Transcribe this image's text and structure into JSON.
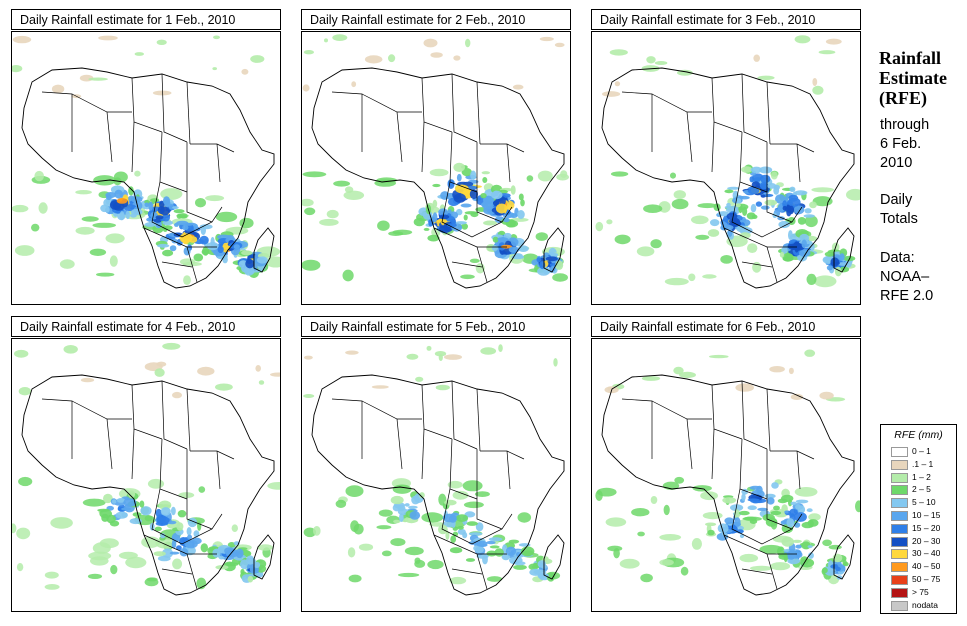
{
  "panels": [
    {
      "title": "Daily Rainfall estimate for  1 Feb., 2010",
      "intensity": "very high",
      "focus": "south"
    },
    {
      "title": "Daily Rainfall estimate for  2 Feb., 2010",
      "intensity": "very high",
      "focus": "central"
    },
    {
      "title": "Daily Rainfall estimate for  3 Feb., 2010",
      "intensity": "high",
      "focus": "central"
    },
    {
      "title": "Daily Rainfall estimate for  4 Feb., 2010",
      "intensity": "moderate",
      "focus": "south"
    },
    {
      "title": "Daily Rainfall estimate for  5 Feb., 2010",
      "intensity": "low",
      "focus": "south"
    },
    {
      "title": "Daily Rainfall estimate for  6 Feb., 2010",
      "intensity": "moderate",
      "focus": "central"
    }
  ],
  "sidebar": {
    "title_lines": [
      "Rainfall",
      "Estimate",
      "(RFE)"
    ],
    "through_lines": [
      "through",
      "6 Feb.",
      "2010"
    ],
    "totals_lines": [
      "Daily",
      "Totals"
    ],
    "data_lines": [
      "Data:",
      "NOAA–",
      "RFE 2.0"
    ]
  },
  "legend": {
    "title": "RFE (mm)",
    "items": [
      {
        "label": "0 – 1",
        "color": "#ffffff"
      },
      {
        "label": ".1 – 1",
        "color": "#e8d6bd"
      },
      {
        "label": "1 – 2",
        "color": "#b4ecaa"
      },
      {
        "label": "2 – 5",
        "color": "#6ed86a"
      },
      {
        "label": "5 – 10",
        "color": "#84c8f0"
      },
      {
        "label": "10 – 15",
        "color": "#5aa6ee"
      },
      {
        "label": "15 – 20",
        "color": "#2f7fe8"
      },
      {
        "label": "20 – 30",
        "color": "#1450c4"
      },
      {
        "label": "30 – 40",
        "color": "#ffd83c"
      },
      {
        "label": "40 – 50",
        "color": "#ff9a1e"
      },
      {
        "label": "50 – 75",
        "color": "#e8401a"
      },
      {
        "label": "> 75",
        "color": "#b41414"
      },
      {
        "label": "nodata",
        "color": "#c8c8c8"
      }
    ]
  }
}
